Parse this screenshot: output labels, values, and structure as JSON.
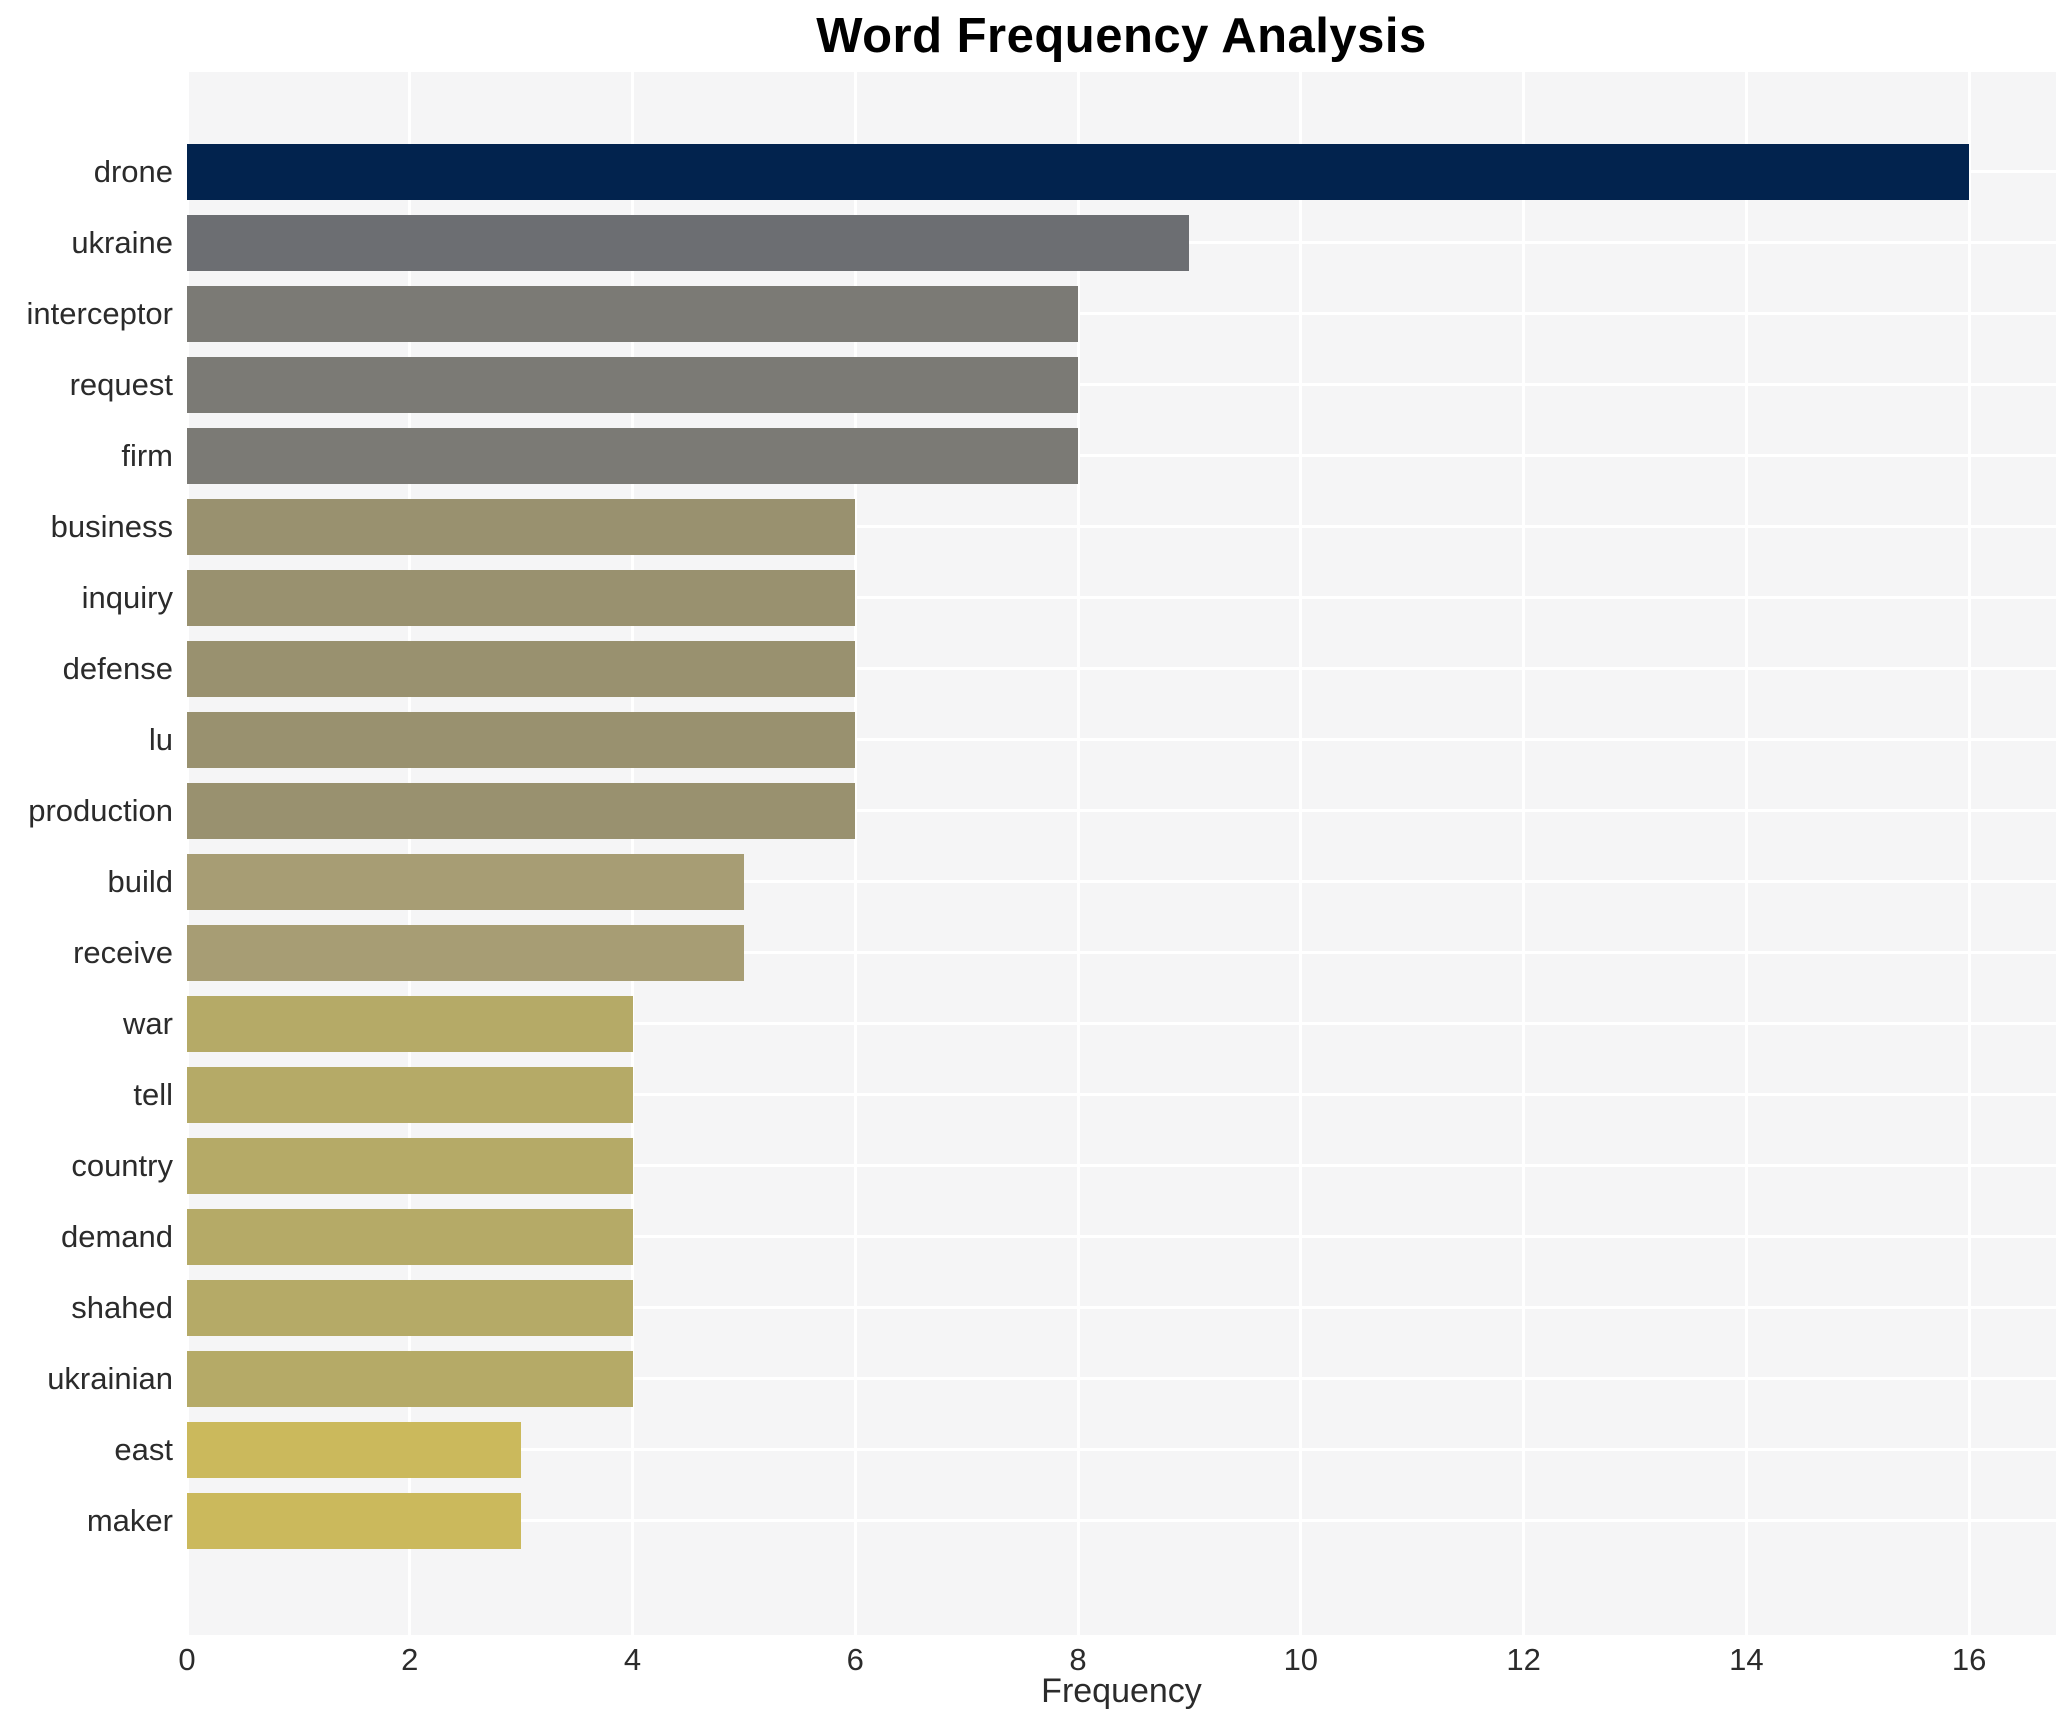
{
  "chart_data": {
    "type": "bar",
    "orientation": "horizontal",
    "title": "Word Frequency Analysis",
    "xlabel": "Frequency",
    "ylabel": "",
    "categories": [
      "drone",
      "ukraine",
      "interceptor",
      "request",
      "firm",
      "business",
      "inquiry",
      "defense",
      "lu",
      "production",
      "build",
      "receive",
      "war",
      "tell",
      "country",
      "demand",
      "shahed",
      "ukrainian",
      "east",
      "maker"
    ],
    "values": [
      16,
      9,
      8,
      8,
      8,
      6,
      6,
      6,
      6,
      6,
      5,
      5,
      4,
      4,
      4,
      4,
      4,
      4,
      3,
      3
    ],
    "bar_colors": [
      "#02234e",
      "#6c6e72",
      "#7b7a75",
      "#7b7a75",
      "#7b7a75",
      "#99916f",
      "#99916f",
      "#99916f",
      "#99916f",
      "#99916f",
      "#a79d74",
      "#a79d74",
      "#b5aa67",
      "#b5aa67",
      "#b5aa67",
      "#b5aa67",
      "#b5aa67",
      "#b5aa67",
      "#cbb95c",
      "#cbb95c"
    ],
    "xticks": [
      0,
      2,
      4,
      6,
      8,
      10,
      12,
      14,
      16
    ],
    "xlim": [
      0,
      16.78
    ],
    "grid": true,
    "legend": "none",
    "plot_background": "#f5f5f6",
    "grid_color": "#ffffff",
    "title_color": "#000000",
    "tick_label_color": "#2b2b2b"
  }
}
